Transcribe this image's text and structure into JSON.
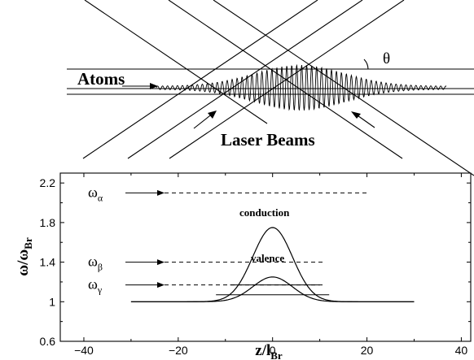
{
  "top_diagram": {
    "atoms_label": "Atoms",
    "laser_label": "Laser Beams",
    "angle_label": "θ"
  },
  "chart_data": {
    "type": "line",
    "xlabel": "z/l",
    "xlabel_sub": "Br",
    "ylabel": "ω/ω",
    "ylabel_sub": "Br",
    "xlim": [
      -45,
      42
    ],
    "ylim": [
      0.6,
      2.3
    ],
    "x_ticks": [
      -40,
      -20,
      0,
      20,
      40
    ],
    "x_tick_labels": [
      "−40",
      "−20",
      "0",
      "20",
      "40"
    ],
    "y_ticks": [
      0.6,
      1,
      1.4,
      1.8,
      2.2
    ],
    "y_tick_labels": [
      "0.6",
      "1",
      "1.4",
      "1.8",
      "2.2"
    ],
    "series": [
      {
        "name": "conduction",
        "peak": 1.75,
        "baseline": 1.0,
        "width_sigma": 4.2,
        "x_range": [
          -30,
          30
        ]
      },
      {
        "name": "valence",
        "peak": 1.25,
        "baseline": 1.0,
        "width_sigma": 4.2,
        "x_range": [
          -30,
          30
        ]
      }
    ],
    "levels": [
      {
        "symbol": "ω",
        "sub": "α",
        "value": 2.1,
        "x_end": 20
      },
      {
        "symbol": "ω",
        "sub": "β",
        "value": 1.4,
        "x_end": 11
      },
      {
        "symbol": "ω",
        "sub": "γ",
        "value": 1.17,
        "x_end": 11
      }
    ],
    "solid_levels": [
      {
        "value": 1.17,
        "x_range": [
          -9,
          10
        ]
      },
      {
        "value": 1.07,
        "x_range": [
          -12,
          12
        ]
      }
    ],
    "annotations": [
      "conduction",
      "valence"
    ]
  }
}
